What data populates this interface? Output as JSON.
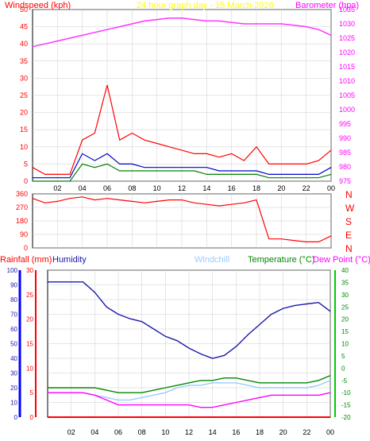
{
  "title": "24 hour graph day - 15 March 2026",
  "colors": {
    "wind": "#ff0000",
    "gust": "#ff0000",
    "avgwind": "#0000cc",
    "windavg2": "#008000",
    "baro": "#ff33ff",
    "dir": "#ff0000",
    "title": "#ffff00",
    "rainfall": "#ff0000",
    "humidity": "#1a1aa8",
    "windchill": "#99ccff",
    "temperature": "#008800",
    "dewpoint": "#ff00ff",
    "grid": "#cccccc",
    "axis": "#000000"
  },
  "chart_data": [
    {
      "type": "line",
      "panel": "wind-baro",
      "title": "24 hour graph day - 15 March 2026",
      "ylabel_left": "Windspeed (kph)",
      "ylabel_right": "Barometer (hpa)",
      "ylim_left": [
        0,
        50
      ],
      "ylim_right": [
        975,
        1035
      ],
      "yticks_left": [
        "0",
        "5",
        "10",
        "15",
        "20",
        "25",
        "30",
        "35",
        "40",
        "45",
        "50"
      ],
      "yticks_right": [
        "975",
        "980",
        "985",
        "990",
        "995",
        "1000",
        "1005",
        "1010",
        "1015",
        "1020",
        "1025",
        "1030",
        "1035"
      ],
      "xticks": [
        "02",
        "04",
        "06",
        "08",
        "10",
        "12",
        "14",
        "16",
        "18",
        "20",
        "22",
        "00"
      ],
      "x_hours": [
        0,
        1,
        2,
        3,
        4,
        5,
        6,
        7,
        8,
        9,
        10,
        11,
        12,
        13,
        14,
        15,
        16,
        17,
        18,
        19,
        20,
        21,
        22,
        23,
        24
      ],
      "series": [
        {
          "key": "gust",
          "values": [
            4,
            2,
            2,
            2,
            12,
            14,
            28,
            12,
            14,
            12,
            11,
            10,
            9,
            8,
            8,
            7,
            8,
            6,
            10,
            5,
            5,
            5,
            5,
            6,
            9
          ]
        },
        {
          "key": "avgwind",
          "values": [
            1,
            1,
            1,
            1,
            8,
            6,
            8,
            5,
            5,
            4,
            4,
            4,
            4,
            4,
            4,
            3,
            3,
            3,
            3,
            2,
            2,
            2,
            2,
            2,
            4
          ]
        },
        {
          "key": "windavg2",
          "values": [
            0,
            0,
            0,
            0,
            5,
            4,
            5,
            3,
            3,
            3,
            3,
            3,
            3,
            3,
            2,
            2,
            2,
            2,
            2,
            1,
            1,
            1,
            1,
            1,
            2
          ]
        },
        {
          "key": "baro",
          "axis": "right",
          "values": [
            1022,
            1023,
            1024,
            1025,
            1026,
            1027,
            1028,
            1029,
            1030,
            1031,
            1031.5,
            1032,
            1032,
            1031.5,
            1031,
            1031,
            1030.5,
            1030,
            1030,
            1030,
            1030,
            1029.5,
            1029,
            1028,
            1026
          ]
        }
      ]
    },
    {
      "type": "line",
      "panel": "wind-direction",
      "ylim": [
        0,
        360
      ],
      "yticks": [
        "0",
        "90",
        "180",
        "270",
        "360"
      ],
      "compass_labels": [
        "N",
        "W",
        "S",
        "E",
        "N"
      ],
      "x_hours": [
        0,
        1,
        2,
        3,
        4,
        5,
        6,
        7,
        8,
        9,
        10,
        11,
        12,
        13,
        14,
        15,
        16,
        17,
        18,
        19,
        20,
        21,
        22,
        23,
        24
      ],
      "series": [
        {
          "key": "dir",
          "values": [
            330,
            300,
            310,
            330,
            340,
            320,
            330,
            320,
            310,
            300,
            310,
            320,
            320,
            300,
            290,
            280,
            290,
            300,
            320,
            60,
            60,
            50,
            40,
            40,
            80
          ]
        }
      ]
    },
    {
      "type": "line",
      "panel": "temp-humidity",
      "ylabel_rain": "Rainfall (mm)",
      "ylabel_humidity": "Humidity",
      "ylabel_windchill": "Windchill",
      "ylabel_temperature": "Temperature (°C)",
      "ylabel_dewpoint": "Dew Point (°C)",
      "ylim_humidity": [
        0,
        100
      ],
      "ylim_rain": [
        0,
        30
      ],
      "ylim_temp": [
        -20,
        40
      ],
      "yticks_humidity": [
        "0",
        "10",
        "20",
        "30",
        "40",
        "50",
        "60",
        "70",
        "80",
        "90",
        "100"
      ],
      "yticks_rain": [
        "0",
        "5",
        "10",
        "15",
        "20",
        "25",
        "30"
      ],
      "yticks_temp": [
        "-20",
        "-15",
        "-10",
        "-5",
        "0",
        "5",
        "10",
        "15",
        "20",
        "25",
        "30",
        "35",
        "40"
      ],
      "xticks": [
        "02",
        "04",
        "06",
        "08",
        "10",
        "12",
        "14",
        "16",
        "18",
        "20",
        "22",
        "00"
      ],
      "x_hours": [
        0,
        1,
        2,
        3,
        4,
        5,
        6,
        7,
        8,
        9,
        10,
        11,
        12,
        13,
        14,
        15,
        16,
        17,
        18,
        19,
        20,
        21,
        22,
        23,
        24
      ],
      "series": [
        {
          "key": "humidity",
          "values": [
            92,
            92,
            92,
            92,
            85,
            75,
            70,
            67,
            65,
            60,
            55,
            52,
            47,
            43,
            40,
            42,
            48,
            56,
            63,
            70,
            74,
            76,
            77,
            78,
            72
          ]
        },
        {
          "key": "temperature",
          "axis": "temp",
          "values": [
            -8,
            -8,
            -8,
            -8,
            -8,
            -9,
            -10,
            -10,
            -10,
            -9,
            -8,
            -7,
            -6,
            -5,
            -5,
            -4,
            -4,
            -5,
            -6,
            -6,
            -6,
            -6,
            -6,
            -5,
            -3
          ]
        },
        {
          "key": "windchill",
          "axis": "temp",
          "values": [
            -10,
            -10,
            -10,
            -10,
            -11,
            -12,
            -13,
            -13,
            -12,
            -11,
            -10,
            -8,
            -7,
            -7,
            -6,
            -6,
            -6,
            -7,
            -8,
            -8,
            -8,
            -8,
            -8,
            -7,
            -5
          ]
        },
        {
          "key": "dewpoint",
          "axis": "temp",
          "values": [
            -10,
            -10,
            -10,
            -10,
            -11,
            -13,
            -15,
            -15,
            -15,
            -15,
            -15,
            -15,
            -15,
            -16,
            -16,
            -15,
            -14,
            -13,
            -12,
            -11,
            -11,
            -11,
            -11,
            -11,
            -10
          ]
        },
        {
          "key": "rainfall",
          "axis": "rain",
          "values": [
            0,
            0,
            0,
            0,
            0,
            0,
            0,
            0,
            0,
            0,
            0,
            0,
            0,
            0,
            0,
            0,
            0,
            0,
            0,
            0,
            0,
            0,
            0,
            0,
            0
          ]
        }
      ]
    }
  ]
}
